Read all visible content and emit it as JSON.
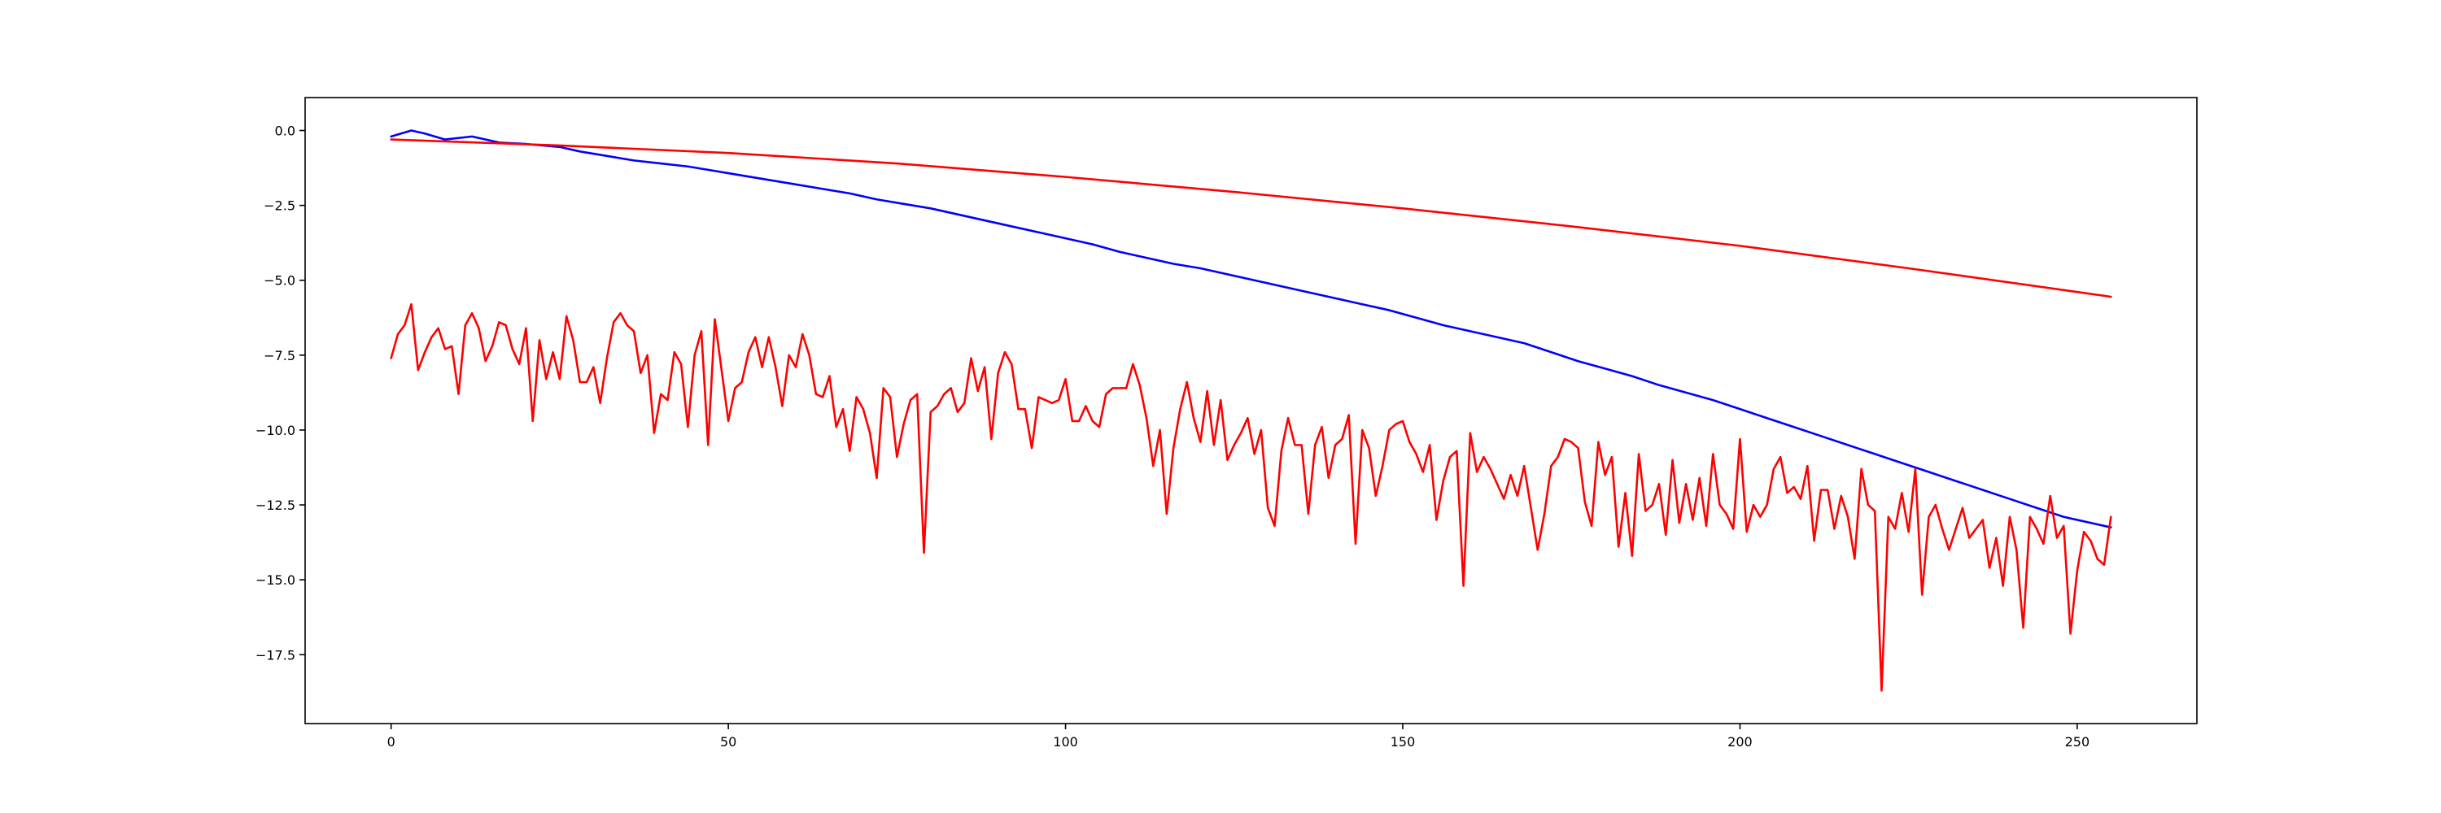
{
  "chart_data": {
    "type": "line",
    "title": "",
    "xlabel": "",
    "ylabel": "",
    "xlim": [
      -12.75,
      267.75
    ],
    "ylim": [
      -19.8,
      1.1
    ],
    "xticks": [
      0,
      50,
      100,
      150,
      200,
      250
    ],
    "xtick_labels": [
      "0",
      "50",
      "100",
      "150",
      "200",
      "250"
    ],
    "yticks": [
      0,
      -2.5,
      -5,
      -7.5,
      -10,
      -12.5,
      -15,
      -17.5
    ],
    "ytick_labels": [
      "0.0",
      "−2.5",
      "−5.0",
      "−7.5",
      "−10.0",
      "−12.5",
      "−15.0",
      "−17.5"
    ],
    "grid": false,
    "legend": "none",
    "series": [
      {
        "color": "#0000ff",
        "x": [
          0,
          3,
          5,
          8,
          12,
          16,
          20,
          25,
          28,
          32,
          36,
          40,
          44,
          48,
          52,
          56,
          60,
          64,
          68,
          72,
          76,
          80,
          84,
          88,
          92,
          96,
          100,
          104,
          108,
          112,
          116,
          120,
          124,
          128,
          132,
          136,
          140,
          144,
          148,
          152,
          156,
          160,
          164,
          168,
          172,
          176,
          180,
          184,
          188,
          192,
          196,
          200,
          204,
          208,
          212,
          216,
          220,
          224,
          228,
          232,
          236,
          240,
          244,
          248,
          252,
          255
        ],
        "y": [
          -0.2,
          0.0,
          -0.1,
          -0.3,
          -0.2,
          -0.4,
          -0.45,
          -0.55,
          -0.7,
          -0.85,
          -1.0,
          -1.1,
          -1.2,
          -1.35,
          -1.5,
          -1.65,
          -1.8,
          -1.95,
          -2.1,
          -2.3,
          -2.45,
          -2.6,
          -2.8,
          -3.0,
          -3.2,
          -3.4,
          -3.6,
          -3.8,
          -4.05,
          -4.25,
          -4.45,
          -4.6,
          -4.8,
          -5.0,
          -5.2,
          -5.4,
          -5.6,
          -5.8,
          -6.0,
          -6.25,
          -6.5,
          -6.7,
          -6.9,
          -7.1,
          -7.4,
          -7.7,
          -7.95,
          -8.2,
          -8.5,
          -8.75,
          -9.0,
          -9.3,
          -9.6,
          -9.9,
          -10.2,
          -10.5,
          -10.8,
          -11.1,
          -11.4,
          -11.7,
          -12.0,
          -12.3,
          -12.6,
          -12.9,
          -13.1,
          -13.25
        ]
      },
      {
        "color": "#ff0000",
        "x": [
          0,
          25,
          50,
          75,
          100,
          125,
          150,
          175,
          200,
          225,
          255
        ],
        "y": [
          -0.3,
          -0.5,
          -0.75,
          -1.1,
          -1.55,
          -2.05,
          -2.6,
          -3.2,
          -3.85,
          -4.6,
          -5.55
        ]
      },
      {
        "color": "#ff0000",
        "x": [
          0,
          1,
          2,
          3,
          4,
          5,
          6,
          7,
          8,
          9,
          10,
          11,
          12,
          13,
          14,
          15,
          16,
          17,
          18,
          19,
          20,
          21,
          22,
          23,
          24,
          25,
          26,
          27,
          28,
          29,
          30,
          31,
          32,
          33,
          34,
          35,
          36,
          37,
          38,
          39,
          40,
          41,
          42,
          43,
          44,
          45,
          46,
          47,
          48,
          49,
          50,
          51,
          52,
          53,
          54,
          55,
          56,
          57,
          58,
          59,
          60,
          61,
          62,
          63,
          64,
          65,
          66,
          67,
          68,
          69,
          70,
          71,
          72,
          73,
          74,
          75,
          76,
          77,
          78,
          79,
          80,
          81,
          82,
          83,
          84,
          85,
          86,
          87,
          88,
          89,
          90,
          91,
          92,
          93,
          94,
          95,
          96,
          97,
          98,
          99,
          100,
          101,
          102,
          103,
          104,
          105,
          106,
          107,
          108,
          109,
          110,
          111,
          112,
          113,
          114,
          115,
          116,
          117,
          118,
          119,
          120,
          121,
          122,
          123,
          124,
          125,
          126,
          127,
          128,
          129,
          130,
          131,
          132,
          133,
          134,
          135,
          136,
          137,
          138,
          139,
          140,
          141,
          142,
          143,
          144,
          145,
          146,
          147,
          148,
          149,
          150,
          151,
          152,
          153,
          154,
          155,
          156,
          157,
          158,
          159,
          160,
          161,
          162,
          163,
          164,
          165,
          166,
          167,
          168,
          169,
          170,
          171,
          172,
          173,
          174,
          175,
          176,
          177,
          178,
          179,
          180,
          181,
          182,
          183,
          184,
          185,
          186,
          187,
          188,
          189,
          190,
          191,
          192,
          193,
          194,
          195,
          196,
          197,
          198,
          199,
          200,
          201,
          202,
          203,
          204,
          205,
          206,
          207,
          208,
          209,
          210,
          211,
          212,
          213,
          214,
          215,
          216,
          217,
          218,
          219,
          220,
          221,
          222,
          223,
          224,
          225,
          226,
          227,
          228,
          229,
          230,
          231,
          232,
          233,
          234,
          235,
          236,
          237,
          238,
          239,
          240,
          241,
          242,
          243,
          244,
          245,
          246,
          247,
          248,
          249,
          250,
          251,
          252,
          253,
          254,
          255
        ],
        "y": [
          -7.6,
          -6.8,
          -6.5,
          -5.8,
          -8.0,
          -7.4,
          -6.9,
          -6.6,
          -7.3,
          -7.2,
          -8.8,
          -6.5,
          -6.1,
          -6.6,
          -7.7,
          -7.2,
          -6.4,
          -6.5,
          -7.3,
          -7.8,
          -6.6,
          -9.7,
          -7.0,
          -8.3,
          -7.4,
          -8.3,
          -6.2,
          -7.0,
          -8.4,
          -8.4,
          -7.9,
          -9.1,
          -7.6,
          -6.4,
          -6.1,
          -6.5,
          -6.7,
          -8.1,
          -7.5,
          -10.1,
          -8.8,
          -9.0,
          -7.4,
          -7.8,
          -9.9,
          -7.5,
          -6.7,
          -10.5,
          -6.3,
          -8.0,
          -9.7,
          -8.6,
          -8.4,
          -7.4,
          -6.9,
          -7.9,
          -6.9,
          -7.9,
          -9.2,
          -7.5,
          -7.9,
          -6.8,
          -7.5,
          -8.8,
          -8.9,
          -8.2,
          -9.9,
          -9.3,
          -10.7,
          -8.9,
          -9.3,
          -10.1,
          -11.6,
          -8.6,
          -8.9,
          -10.9,
          -9.8,
          -9.0,
          -8.8,
          -14.1,
          -9.4,
          -9.2,
          -8.8,
          -8.6,
          -9.4,
          -9.1,
          -7.6,
          -8.7,
          -7.9,
          -10.3,
          -8.1,
          -7.4,
          -7.8,
          -9.3,
          -9.3,
          -10.6,
          -8.9,
          -9.0,
          -9.1,
          -9.0,
          -8.3,
          -9.7,
          -9.7,
          -9.2,
          -9.7,
          -9.9,
          -8.8,
          -8.6,
          -8.6,
          -8.6,
          -7.8,
          -8.5,
          -9.6,
          -11.2,
          -10.0,
          -12.8,
          -10.6,
          -9.3,
          -8.4,
          -9.6,
          -10.4,
          -8.7,
          -10.5,
          -9.0,
          -11.0,
          -10.5,
          -10.1,
          -9.6,
          -10.8,
          -10.0,
          -12.6,
          -13.2,
          -10.7,
          -9.6,
          -10.5,
          -10.5,
          -12.8,
          -10.5,
          -9.9,
          -11.6,
          -10.5,
          -10.3,
          -9.5,
          -13.8,
          -10.0,
          -10.6,
          -12.2,
          -11.2,
          -10.0,
          -9.8,
          -9.7,
          -10.4,
          -10.8,
          -11.4,
          -10.5,
          -13.0,
          -11.7,
          -10.9,
          -10.7,
          -15.2,
          -10.1,
          -11.4,
          -10.9,
          -11.3,
          -11.8,
          -12.3,
          -11.5,
          -12.2,
          -11.2,
          -12.6,
          -14.0,
          -12.8,
          -11.2,
          -10.9,
          -10.3,
          -10.4,
          -10.6,
          -12.4,
          -13.2,
          -10.4,
          -11.5,
          -10.9,
          -13.9,
          -12.1,
          -14.2,
          -10.8,
          -12.7,
          -12.5,
          -11.8,
          -13.5,
          -11.0,
          -13.1,
          -11.8,
          -13.0,
          -11.6,
          -13.2,
          -10.8,
          -12.5,
          -12.8,
          -13.3,
          -10.3,
          -13.4,
          -12.5,
          -12.9,
          -12.5,
          -11.3,
          -10.9,
          -12.1,
          -11.9,
          -12.3,
          -11.2,
          -13.7,
          -12.0,
          -12.0,
          -13.3,
          -12.2,
          -12.9,
          -14.3,
          -11.3,
          -12.5,
          -12.7,
          -18.7,
          -12.9,
          -13.3,
          -12.1,
          -13.4,
          -11.3,
          -15.5,
          -12.9,
          -12.5,
          -13.3,
          -14.0,
          -13.3,
          -12.6,
          -13.6,
          -13.3,
          -13.0,
          -14.6,
          -13.6,
          -15.2,
          -12.9,
          -14.0,
          -16.6,
          -12.9,
          -13.3,
          -13.8,
          -12.2,
          -13.6,
          -13.2,
          -16.8,
          -14.7,
          -13.4,
          -13.7,
          -14.3,
          -14.5,
          -12.9
        ]
      }
    ]
  }
}
